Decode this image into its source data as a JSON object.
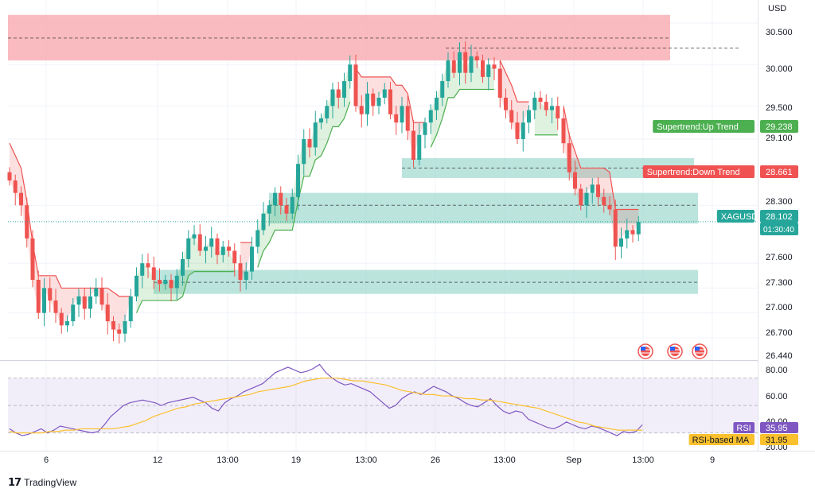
{
  "currency_label": "USD",
  "brand": {
    "name": "TradingView",
    "icon": "tradingview-logo-icon"
  },
  "colors": {
    "up": "#26a69a",
    "down": "#ef5350",
    "grid": "#f0f3fa",
    "zone_resistance": "#f8aab0",
    "zone_support": "#9ed9cf",
    "supertrend_up": "#4caf50",
    "supertrend_down": "#f05252",
    "rsi": "#7e57c2",
    "rsi_ma": "#fbc02d"
  },
  "price_axis": {
    "ticks": [
      "30.500",
      "30.000",
      "29.500",
      "29.100",
      "28.300",
      "27.600",
      "27.300",
      "27.000",
      "26.700",
      "26.440"
    ],
    "range": [
      26.44,
      30.78
    ]
  },
  "time_axis": {
    "ticks": [
      "6",
      "12",
      "13:00",
      "19",
      "13:00",
      "26",
      "13:00",
      "Sep",
      "13:00",
      "9"
    ]
  },
  "price_tags": [
    {
      "label": "Supertrend:Up Trend",
      "value": "29.238",
      "color": "#4caf50",
      "price": 29.238
    },
    {
      "label": "Supertrend:Down Trend",
      "value": "28.661",
      "color": "#f05252",
      "price": 28.661
    },
    {
      "label": "XAGUSD",
      "value": "28.102",
      "countdown": "01:30:40",
      "color": "#26a69a",
      "price": 28.102
    }
  ],
  "rsi_panel": {
    "ticks": [
      "80.00",
      "60.00",
      "40.00",
      "20.00"
    ],
    "range": [
      17,
      82
    ],
    "band": [
      30,
      70
    ],
    "tags": [
      {
        "label": "RSI",
        "value": "35.95",
        "color": "#7e57c2",
        "text_color": "#ffffff"
      },
      {
        "label": "RSI-based MA",
        "value": "31.95",
        "color": "#fbc02d",
        "text_color": "#131722"
      }
    ]
  },
  "chart_data": {
    "type": "candlestick",
    "symbol": "XAGUSD",
    "last_price": 28.102,
    "ylim": [
      26.44,
      30.78
    ],
    "zones": [
      {
        "kind": "resistance",
        "from": 30.05,
        "to": 30.6,
        "line": 30.32
      },
      {
        "kind": "support",
        "from": 28.63,
        "to": 28.87,
        "line": 28.75
      },
      {
        "kind": "support",
        "from": 28.08,
        "to": 28.45,
        "line": 28.3
      },
      {
        "kind": "support",
        "from": 27.23,
        "to": 27.52,
        "line": 27.37
      }
    ],
    "close": [
      28.6,
      28.45,
      28.3,
      27.9,
      27.4,
      27.0,
      27.3,
      27.15,
      27.0,
      26.85,
      26.9,
      27.1,
      27.2,
      27.05,
      27.2,
      27.3,
      27.1,
      26.9,
      26.8,
      26.75,
      26.9,
      27.2,
      27.45,
      27.6,
      27.55,
      27.4,
      27.35,
      27.4,
      27.3,
      27.45,
      27.65,
      27.9,
      27.95,
      27.75,
      27.8,
      27.9,
      27.7,
      27.8,
      27.75,
      27.6,
      27.4,
      27.5,
      27.8,
      28.0,
      28.2,
      28.3,
      28.45,
      28.3,
      28.2,
      28.4,
      28.8,
      29.1,
      29.0,
      29.3,
      29.35,
      29.5,
      29.7,
      29.6,
      29.8,
      30.0,
      29.5,
      29.4,
      29.65,
      29.5,
      29.6,
      29.7,
      29.4,
      29.3,
      29.5,
      29.2,
      28.85,
      29.15,
      29.3,
      29.45,
      29.6,
      29.8,
      30.05,
      29.9,
      30.15,
      29.9,
      30.1,
      30.05,
      29.85,
      30.0,
      29.95,
      29.6,
      29.45,
      29.3,
      29.1,
      29.3,
      29.45,
      29.6,
      29.55,
      29.45,
      29.5,
      29.35,
      29.05,
      28.7,
      28.5,
      28.3,
      28.45,
      28.55,
      28.4,
      28.3,
      28.25,
      27.8,
      27.9,
      28.0,
      27.95,
      28.1
    ],
    "rsi": [
      33,
      30,
      28,
      29,
      31,
      33,
      30,
      32,
      35,
      34,
      33,
      32,
      31,
      30,
      31,
      36,
      42,
      46,
      50,
      52,
      53,
      54,
      53,
      52,
      50,
      52,
      53,
      54,
      55,
      56,
      54,
      52,
      48,
      46,
      52,
      55,
      57,
      60,
      62,
      64,
      66,
      70,
      74,
      76,
      78,
      76,
      74,
      75,
      77,
      80,
      74,
      70,
      67,
      65,
      66,
      64,
      62,
      60,
      56,
      52,
      48,
      50,
      55,
      58,
      60,
      58,
      61,
      64,
      62,
      60,
      57,
      55,
      52,
      50,
      49,
      52,
      55,
      50,
      46,
      44,
      46,
      45,
      40,
      38,
      36,
      34,
      33,
      35,
      38,
      36,
      34,
      33,
      35,
      34,
      32,
      30,
      28,
      31,
      30,
      31,
      35.95
    ],
    "rsi_ma": [
      31,
      30,
      30,
      30,
      30,
      31,
      31,
      32,
      32,
      33,
      33,
      33,
      33,
      33,
      34,
      35,
      37,
      39,
      42,
      44,
      46,
      48,
      49,
      51,
      52,
      53,
      54,
      55,
      56,
      57,
      58,
      60,
      61,
      62,
      63,
      64,
      66,
      68,
      69,
      70,
      70,
      70,
      69,
      68,
      68,
      67,
      66,
      65,
      63,
      61,
      60,
      59,
      58,
      58,
      57,
      57,
      56,
      55,
      55,
      54,
      54,
      53,
      52,
      51,
      50,
      49,
      48,
      46,
      44,
      42,
      40,
      38,
      37,
      35,
      34,
      33,
      32,
      32,
      32,
      31.95
    ]
  }
}
